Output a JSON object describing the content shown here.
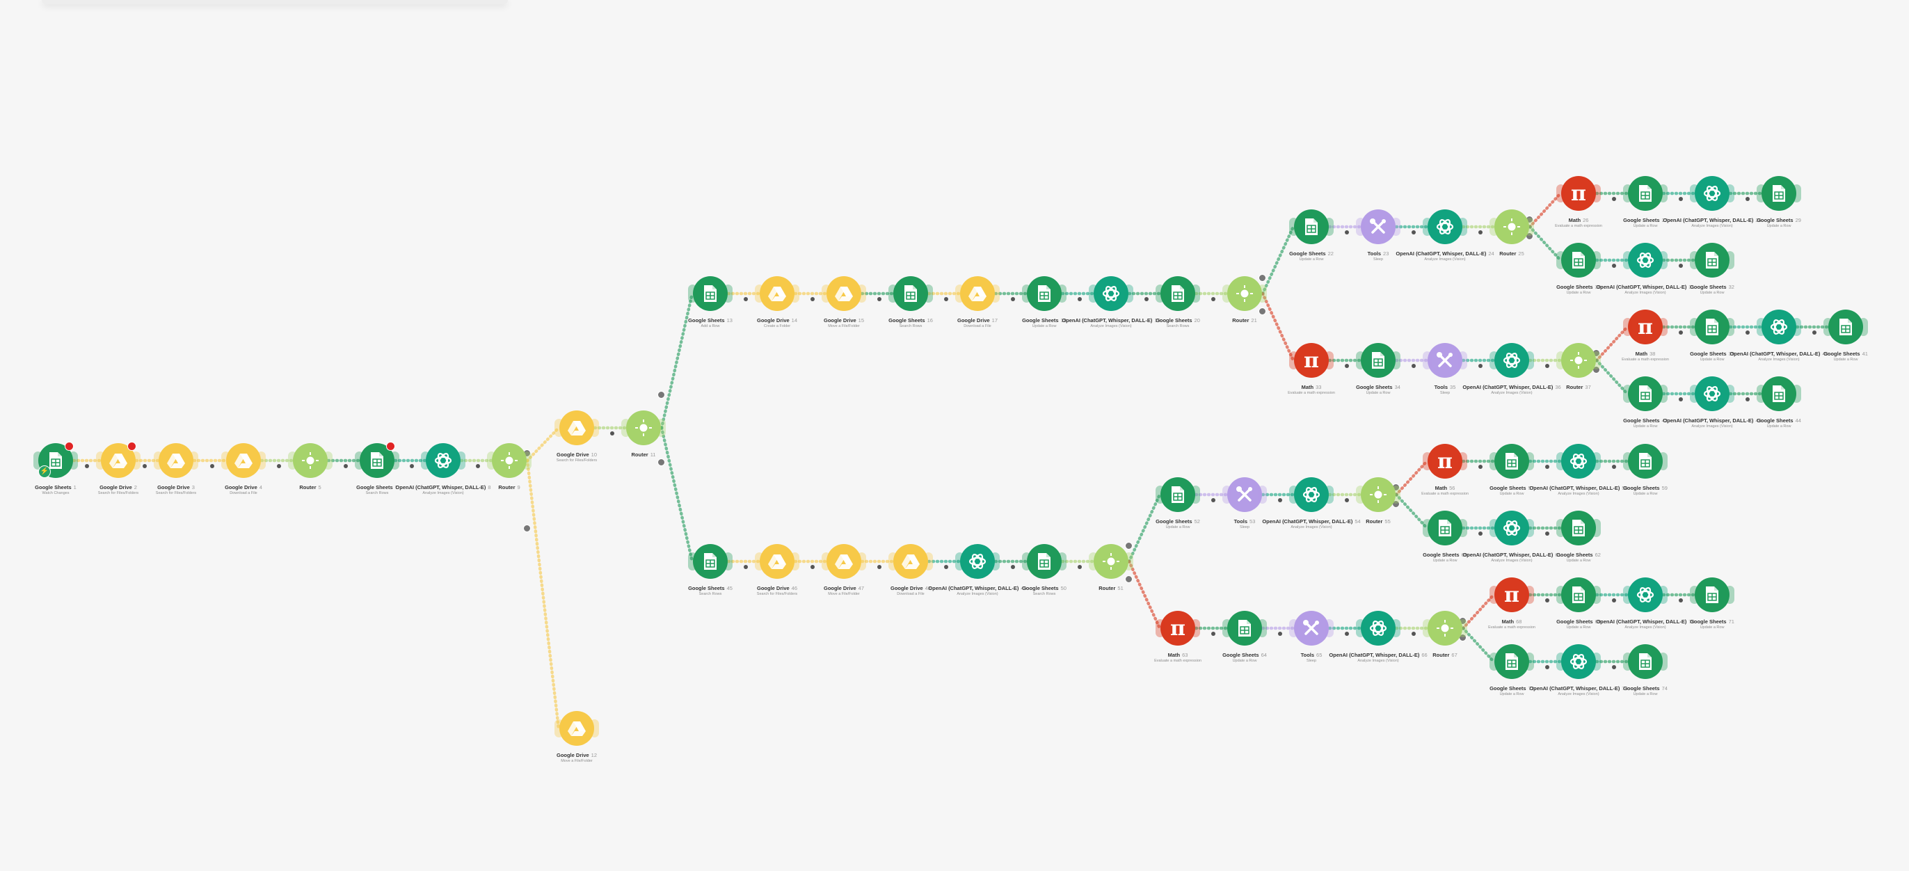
{
  "canvas": {
    "background": "#f6f6f6"
  },
  "apps": {
    "sheets": {
      "name": "Google Sheets",
      "color": "#1f9a5a",
      "icon": "google-sheets-icon"
    },
    "drive": {
      "name": "Google Drive",
      "color": "#f7c948",
      "icon": "google-drive-icon"
    },
    "router": {
      "name": "Router",
      "color": "#a6d36b",
      "icon": "router-icon"
    },
    "openai": {
      "name": "OpenAI (ChatGPT, Whisper, DALL-E)",
      "color": "#11a37f",
      "icon": "openai-icon"
    },
    "math": {
      "name": "Math",
      "color": "#d93a1f",
      "icon": "pi-icon"
    },
    "tools": {
      "name": "Tools",
      "color": "#b49ce6",
      "icon": "tools-icon"
    }
  },
  "nodes": [
    {
      "id": "n1",
      "app": "sheets",
      "idx": "1",
      "sub": "Watch Changes",
      "badge": true,
      "trigger": true
    },
    {
      "id": "n2",
      "app": "drive",
      "idx": "2",
      "sub": "Search for Files/Folders",
      "badge": true
    },
    {
      "id": "n3",
      "app": "drive",
      "idx": "3",
      "sub": "Search for Files/Folders"
    },
    {
      "id": "n4",
      "app": "drive",
      "idx": "4",
      "sub": "Download a File"
    },
    {
      "id": "n5",
      "app": "router",
      "idx": "5",
      "sub": ""
    },
    {
      "id": "n6",
      "app": "sheets",
      "idx": "7",
      "sub": "Search Rows",
      "badge": true
    },
    {
      "id": "n7",
      "app": "openai",
      "idx": "8",
      "sub": "Analyze Images (Vision)"
    },
    {
      "id": "n8",
      "app": "router",
      "idx": "9",
      "sub": ""
    },
    {
      "id": "n9",
      "app": "drive",
      "idx": "10",
      "sub": "Search for Files/Folders"
    },
    {
      "id": "n10",
      "app": "router",
      "idx": "11",
      "sub": ""
    },
    {
      "id": "n11",
      "app": "drive",
      "idx": "12",
      "sub": "Move a File/Folder"
    },
    {
      "id": "u1",
      "app": "sheets",
      "idx": "13",
      "sub": "Add a Row"
    },
    {
      "id": "u2",
      "app": "drive",
      "idx": "14",
      "sub": "Create a Folder"
    },
    {
      "id": "u3",
      "app": "drive",
      "idx": "15",
      "sub": "Move a File/Folder"
    },
    {
      "id": "u4",
      "app": "sheets",
      "idx": "16",
      "sub": "Search Rows"
    },
    {
      "id": "u5",
      "app": "drive",
      "idx": "17",
      "sub": "Download a File"
    },
    {
      "id": "u6",
      "app": "sheets",
      "idx": "18",
      "sub": "Update a Row"
    },
    {
      "id": "u7",
      "app": "openai",
      "idx": "19",
      "sub": "Analyze Images (Vision)"
    },
    {
      "id": "u8",
      "app": "sheets",
      "idx": "20",
      "sub": "Search Rows"
    },
    {
      "id": "u9",
      "app": "router",
      "idx": "21",
      "sub": ""
    },
    {
      "id": "a1",
      "app": "sheets",
      "idx": "22",
      "sub": "Update a Row"
    },
    {
      "id": "a2",
      "app": "tools",
      "idx": "23",
      "sub": "Sleep"
    },
    {
      "id": "a3",
      "app": "openai",
      "idx": "24",
      "sub": "Analyze Images (Vision)"
    },
    {
      "id": "a4",
      "app": "router",
      "idx": "25",
      "sub": ""
    },
    {
      "id": "a5",
      "app": "math",
      "idx": "26",
      "sub": "Evaluate a math expression"
    },
    {
      "id": "a6",
      "app": "sheets",
      "idx": "27",
      "sub": "Update a Row"
    },
    {
      "id": "a7",
      "app": "openai",
      "idx": "28",
      "sub": "Analyze Images (Vision)"
    },
    {
      "id": "a8",
      "app": "sheets",
      "idx": "29",
      "sub": "Update a Row"
    },
    {
      "id": "a9",
      "app": "sheets",
      "idx": "30",
      "sub": "Update a Row"
    },
    {
      "id": "a10",
      "app": "openai",
      "idx": "31",
      "sub": "Analyze Images (Vision)"
    },
    {
      "id": "a11",
      "app": "sheets",
      "idx": "32",
      "sub": "Update a Row"
    },
    {
      "id": "b1",
      "app": "math",
      "idx": "33",
      "sub": "Evaluate a math expression"
    },
    {
      "id": "b2",
      "app": "sheets",
      "idx": "34",
      "sub": "Update a Row"
    },
    {
      "id": "b3",
      "app": "tools",
      "idx": "35",
      "sub": "Sleep"
    },
    {
      "id": "b4",
      "app": "openai",
      "idx": "36",
      "sub": "Analyze Images (Vision)"
    },
    {
      "id": "b5",
      "app": "router",
      "idx": "37",
      "sub": ""
    },
    {
      "id": "b6",
      "app": "math",
      "idx": "38",
      "sub": "Evaluate a math expression"
    },
    {
      "id": "b7",
      "app": "sheets",
      "idx": "39",
      "sub": "Update a Row"
    },
    {
      "id": "b8",
      "app": "openai",
      "idx": "40",
      "sub": "Analyze Images (Vision)"
    },
    {
      "id": "b9",
      "app": "sheets",
      "idx": "41",
      "sub": "Update a Row"
    },
    {
      "id": "b10",
      "app": "sheets",
      "idx": "42",
      "sub": "Update a Row"
    },
    {
      "id": "b11",
      "app": "openai",
      "idx": "43",
      "sub": "Analyze Images (Vision)"
    },
    {
      "id": "b12",
      "app": "sheets",
      "idx": "44",
      "sub": "Update a Row"
    },
    {
      "id": "l1",
      "app": "sheets",
      "idx": "45",
      "sub": "Search Rows"
    },
    {
      "id": "l2",
      "app": "drive",
      "idx": "46",
      "sub": "Search for Files/Folders"
    },
    {
      "id": "l3",
      "app": "drive",
      "idx": "47",
      "sub": "Move a File/Folder"
    },
    {
      "id": "l4",
      "app": "drive",
      "idx": "48",
      "sub": "Download a File"
    },
    {
      "id": "l5",
      "app": "openai",
      "idx": "49",
      "sub": "Analyze Images (Vision)"
    },
    {
      "id": "l6",
      "app": "sheets",
      "idx": "50",
      "sub": "Search Rows"
    },
    {
      "id": "l7",
      "app": "router",
      "idx": "51",
      "sub": ""
    },
    {
      "id": "c1",
      "app": "sheets",
      "idx": "52",
      "sub": "Update a Row"
    },
    {
      "id": "c2",
      "app": "tools",
      "idx": "53",
      "sub": "Sleep"
    },
    {
      "id": "c3",
      "app": "openai",
      "idx": "54",
      "sub": "Analyze Images (Vision)"
    },
    {
      "id": "c4",
      "app": "router",
      "idx": "55",
      "sub": ""
    },
    {
      "id": "c5",
      "app": "math",
      "idx": "56",
      "sub": "Evaluate a math expression"
    },
    {
      "id": "c6",
      "app": "sheets",
      "idx": "57",
      "sub": "Update a Row"
    },
    {
      "id": "c7",
      "app": "openai",
      "idx": "58",
      "sub": "Analyze Images (Vision)"
    },
    {
      "id": "c8",
      "app": "sheets",
      "idx": "59",
      "sub": "Update a Row"
    },
    {
      "id": "c9",
      "app": "sheets",
      "idx": "60",
      "sub": "Update a Row"
    },
    {
      "id": "c10",
      "app": "openai",
      "idx": "61",
      "sub": "Analyze Images (Vision)"
    },
    {
      "id": "c11",
      "app": "sheets",
      "idx": "62",
      "sub": "Update a Row"
    },
    {
      "id": "d1",
      "app": "math",
      "idx": "63",
      "sub": "Evaluate a math expression"
    },
    {
      "id": "d2",
      "app": "sheets",
      "idx": "64",
      "sub": "Update a Row"
    },
    {
      "id": "d3",
      "app": "tools",
      "idx": "65",
      "sub": "Sleep"
    },
    {
      "id": "d4",
      "app": "openai",
      "idx": "66",
      "sub": "Analyze Images (Vision)"
    },
    {
      "id": "d5",
      "app": "router",
      "idx": "67",
      "sub": ""
    },
    {
      "id": "d6",
      "app": "math",
      "idx": "68",
      "sub": "Evaluate a math expression"
    },
    {
      "id": "d7",
      "app": "sheets",
      "idx": "69",
      "sub": "Update a Row"
    },
    {
      "id": "d8",
      "app": "openai",
      "idx": "70",
      "sub": "Analyze Images (Vision)"
    },
    {
      "id": "d9",
      "app": "sheets",
      "idx": "71",
      "sub": "Update a Row"
    },
    {
      "id": "d10",
      "app": "sheets",
      "idx": "72",
      "sub": "Update a Row"
    },
    {
      "id": "d11",
      "app": "openai",
      "idx": "73",
      "sub": "Analyze Images (Vision)"
    },
    {
      "id": "d12",
      "app": "sheets",
      "idx": "74",
      "sub": "Update a Row"
    }
  ],
  "edges": [
    [
      "n1",
      "n2"
    ],
    [
      "n2",
      "n3"
    ],
    [
      "n3",
      "n4"
    ],
    [
      "n4",
      "n5"
    ],
    [
      "n5",
      "n6"
    ],
    [
      "n6",
      "n7"
    ],
    [
      "n7",
      "n8"
    ],
    [
      "n8",
      "n9"
    ],
    [
      "n8",
      "n11"
    ],
    [
      "n9",
      "n10"
    ],
    [
      "n10",
      "u1"
    ],
    [
      "n10",
      "l1"
    ],
    [
      "u1",
      "u2"
    ],
    [
      "u2",
      "u3"
    ],
    [
      "u3",
      "u4"
    ],
    [
      "u4",
      "u5"
    ],
    [
      "u5",
      "u6"
    ],
    [
      "u6",
      "u7"
    ],
    [
      "u7",
      "u8"
    ],
    [
      "u8",
      "u9"
    ],
    [
      "u9",
      "a1"
    ],
    [
      "u9",
      "b1"
    ],
    [
      "a1",
      "a2"
    ],
    [
      "a2",
      "a3"
    ],
    [
      "a3",
      "a4"
    ],
    [
      "a4",
      "a5"
    ],
    [
      "a4",
      "a9"
    ],
    [
      "a5",
      "a6"
    ],
    [
      "a6",
      "a7"
    ],
    [
      "a7",
      "a8"
    ],
    [
      "a9",
      "a10"
    ],
    [
      "a10",
      "a11"
    ],
    [
      "b1",
      "b2"
    ],
    [
      "b2",
      "b3"
    ],
    [
      "b3",
      "b4"
    ],
    [
      "b4",
      "b5"
    ],
    [
      "b5",
      "b6"
    ],
    [
      "b5",
      "b10"
    ],
    [
      "b6",
      "b7"
    ],
    [
      "b7",
      "b8"
    ],
    [
      "b8",
      "b9"
    ],
    [
      "b10",
      "b11"
    ],
    [
      "b11",
      "b12"
    ],
    [
      "l1",
      "l2"
    ],
    [
      "l2",
      "l3"
    ],
    [
      "l3",
      "l4"
    ],
    [
      "l4",
      "l5"
    ],
    [
      "l5",
      "l6"
    ],
    [
      "l6",
      "l7"
    ],
    [
      "l7",
      "c1"
    ],
    [
      "l7",
      "d1"
    ],
    [
      "c1",
      "c2"
    ],
    [
      "c2",
      "c3"
    ],
    [
      "c3",
      "c4"
    ],
    [
      "c4",
      "c5"
    ],
    [
      "c4",
      "c9"
    ],
    [
      "c5",
      "c6"
    ],
    [
      "c6",
      "c7"
    ],
    [
      "c7",
      "c8"
    ],
    [
      "c9",
      "c10"
    ],
    [
      "c10",
      "c11"
    ],
    [
      "d1",
      "d2"
    ],
    [
      "d2",
      "d3"
    ],
    [
      "d3",
      "d4"
    ],
    [
      "d4",
      "d5"
    ],
    [
      "d5",
      "d6"
    ],
    [
      "d5",
      "d10"
    ],
    [
      "d6",
      "d7"
    ],
    [
      "d7",
      "d8"
    ],
    [
      "d8",
      "d9"
    ],
    [
      "d10",
      "d11"
    ],
    [
      "d11",
      "d12"
    ]
  ]
}
